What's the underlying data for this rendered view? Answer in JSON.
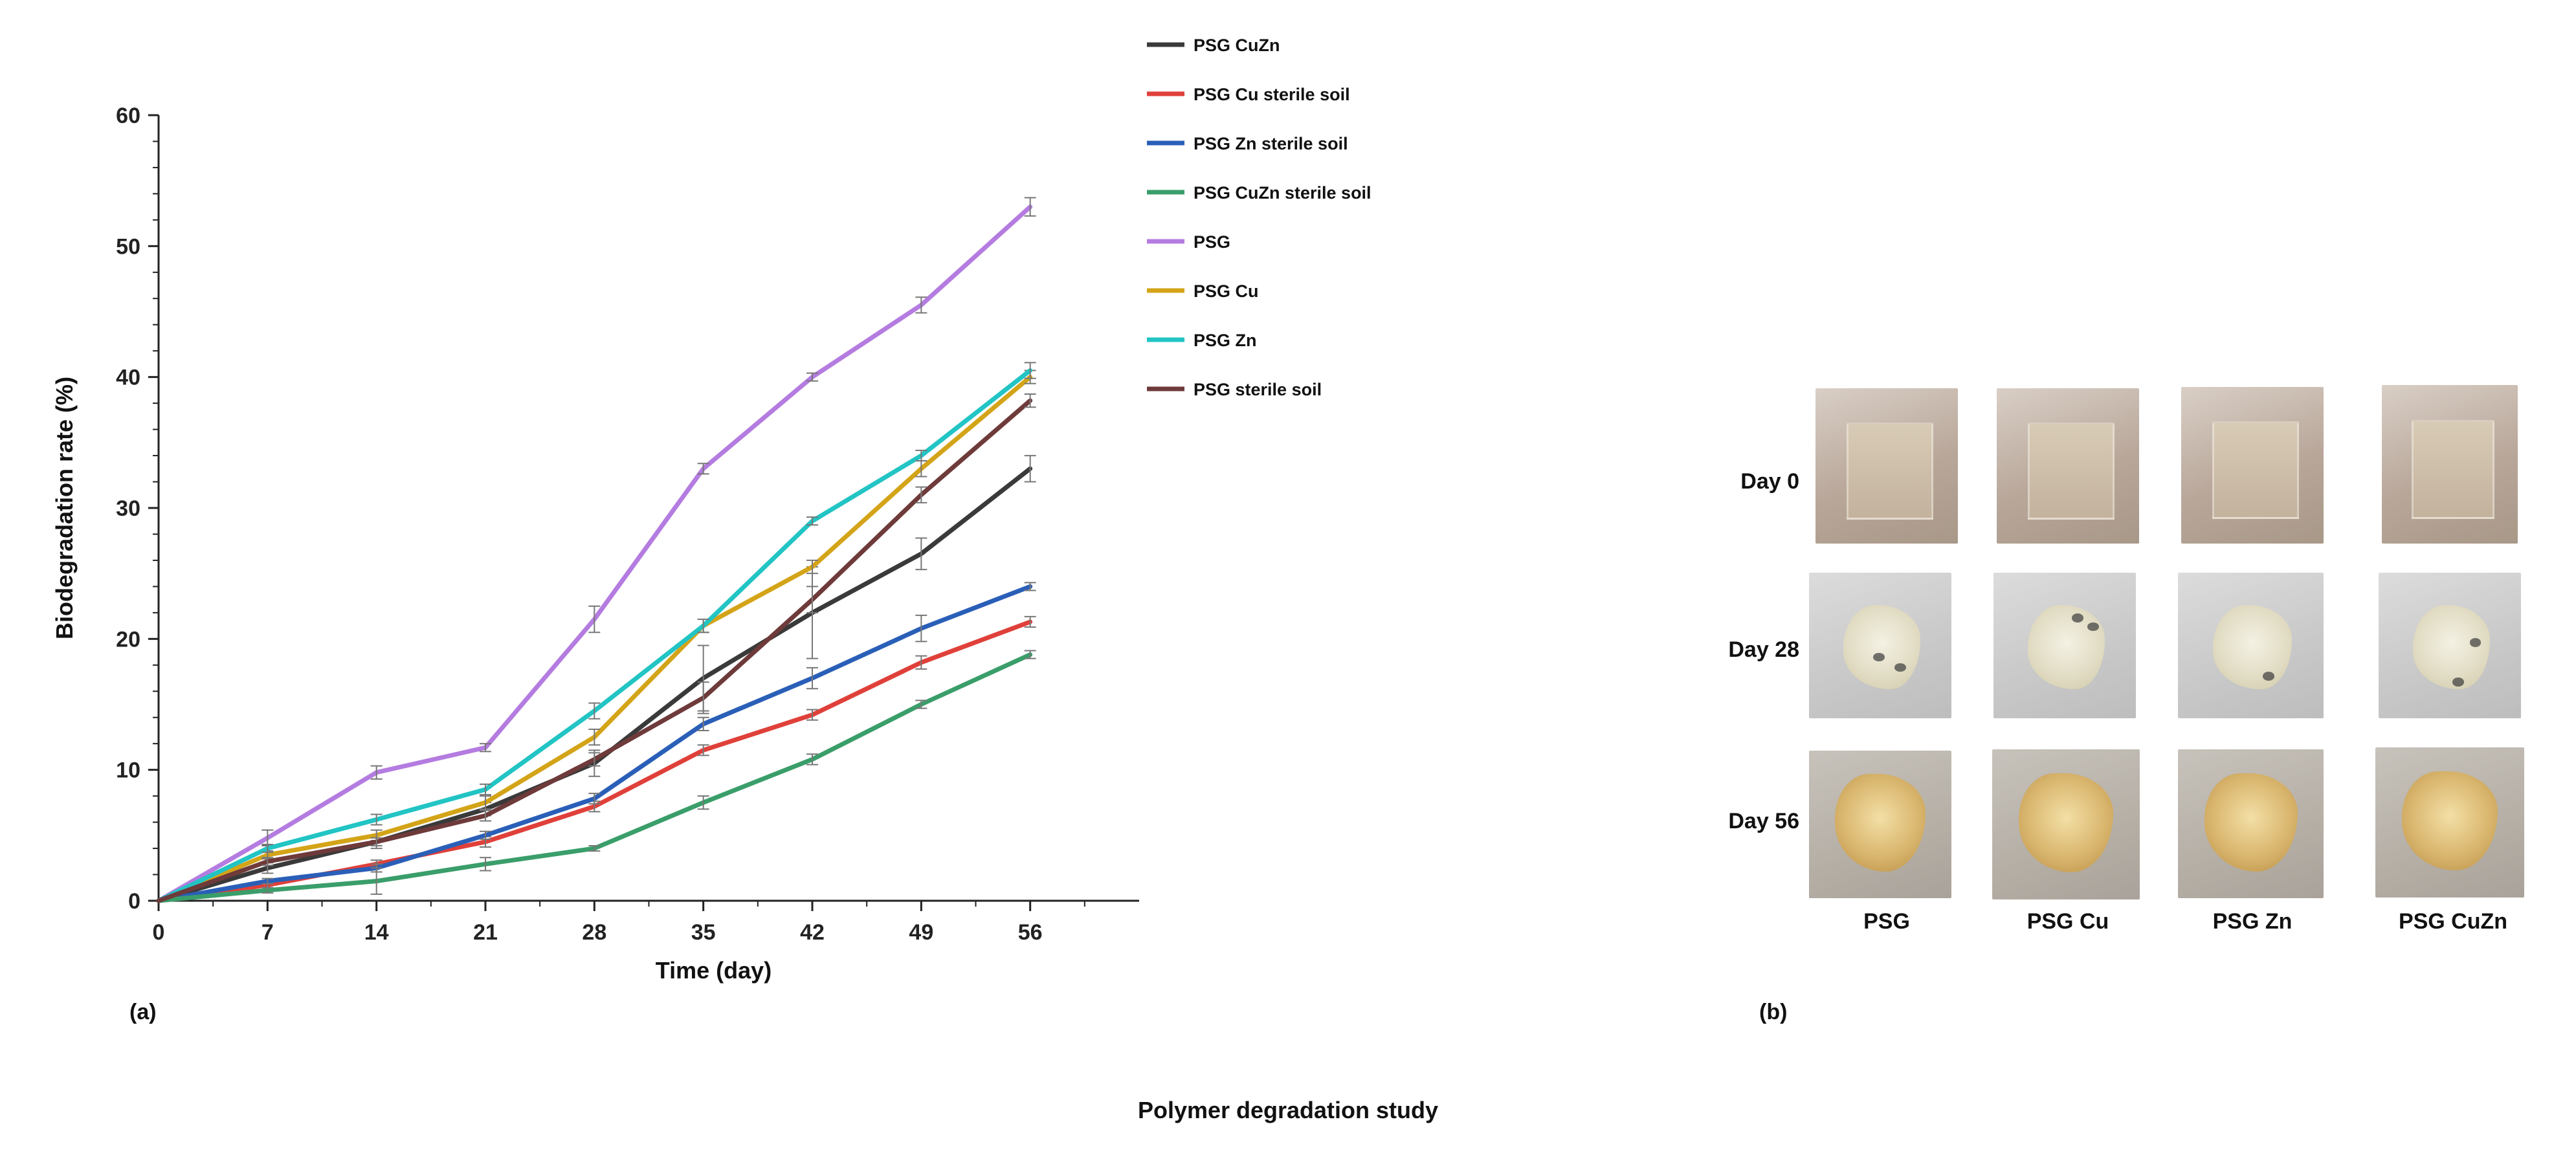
{
  "chart_data": {
    "type": "line",
    "xlabel": "Time (day)",
    "ylabel": "Biodegradation rate (%)",
    "xlim": [
      0,
      63
    ],
    "ylim": [
      0,
      60
    ],
    "x_ticks": [
      0,
      7,
      14,
      21,
      28,
      35,
      42,
      49,
      56
    ],
    "y_ticks": [
      0,
      10,
      20,
      30,
      40,
      50,
      60
    ],
    "x": [
      0,
      7,
      14,
      21,
      28,
      35,
      42,
      49,
      56
    ],
    "series": [
      {
        "name": "PSG CuZn",
        "color": "#3a3a3a",
        "values": [
          0,
          2.5,
          4.5,
          7.0,
          10.5,
          17.0,
          22.0,
          26.5,
          33.0
        ],
        "error": [
          0,
          0.4,
          0.5,
          0.5,
          1.0,
          2.5,
          3.5,
          1.2,
          1.0
        ]
      },
      {
        "name": "PSG Cu sterile soil",
        "color": "#e0403a",
        "values": [
          0,
          1.2,
          2.8,
          4.5,
          7.2,
          11.5,
          14.2,
          18.2,
          21.3
        ],
        "error": [
          0,
          0.2,
          0.3,
          0.4,
          0.4,
          0.4,
          0.4,
          0.5,
          0.4
        ]
      },
      {
        "name": "PSG Zn sterile soil",
        "color": "#2a5fb8",
        "values": [
          0,
          1.5,
          2.5,
          5.0,
          7.8,
          13.5,
          17.0,
          20.8,
          24.0
        ],
        "error": [
          0,
          0.2,
          0.3,
          0.3,
          0.4,
          0.5,
          0.8,
          1.0,
          0.3
        ]
      },
      {
        "name": "PSG CuZn sterile soil",
        "color": "#3a9e6a",
        "values": [
          0,
          0.8,
          1.5,
          2.8,
          4.0,
          7.5,
          10.8,
          15.0,
          18.8
        ],
        "error": [
          0,
          0.2,
          1.0,
          0.5,
          0.2,
          0.5,
          0.4,
          0.3,
          0.3
        ]
      },
      {
        "name": "PSG",
        "color": "#b47ce0",
        "values": [
          0,
          4.8,
          9.8,
          11.7,
          21.5,
          33.0,
          40.0,
          45.5,
          53.0
        ],
        "error": [
          0,
          0.6,
          0.5,
          0.3,
          1.0,
          0.4,
          0.3,
          0.6,
          0.7
        ]
      },
      {
        "name": "PSG Cu",
        "color": "#d4a418",
        "values": [
          0,
          3.5,
          5.0,
          7.5,
          12.5,
          21.0,
          25.5,
          33.0,
          40.0
        ],
        "error": [
          0,
          0.3,
          0.4,
          0.5,
          0.6,
          0.5,
          0.5,
          0.6,
          0.5
        ]
      },
      {
        "name": "PSG Zn",
        "color": "#22c4c4",
        "values": [
          0,
          4.0,
          6.2,
          8.5,
          14.5,
          21.0,
          29.0,
          34.0,
          40.5
        ],
        "error": [
          0,
          0.3,
          0.4,
          0.4,
          0.6,
          0.5,
          0.3,
          0.4,
          0.6
        ]
      },
      {
        "name": "PSG sterile soil",
        "color": "#6e3a3a",
        "values": [
          0,
          3.0,
          4.5,
          6.5,
          10.8,
          15.5,
          23.0,
          31.0,
          38.2
        ],
        "error": [
          0,
          0.3,
          0.3,
          0.4,
          0.5,
          1.2,
          1.0,
          0.6,
          0.5
        ]
      }
    ]
  },
  "panels": {
    "a_label": "(a)",
    "b_label": "(b)"
  },
  "photo_grid": {
    "rows": [
      "Day 0",
      "Day 28",
      "Day 56"
    ],
    "columns": [
      "PSG",
      "PSG Cu",
      "PSG Zn",
      "PSG CuZn"
    ]
  },
  "caption": "Polymer degradation study"
}
